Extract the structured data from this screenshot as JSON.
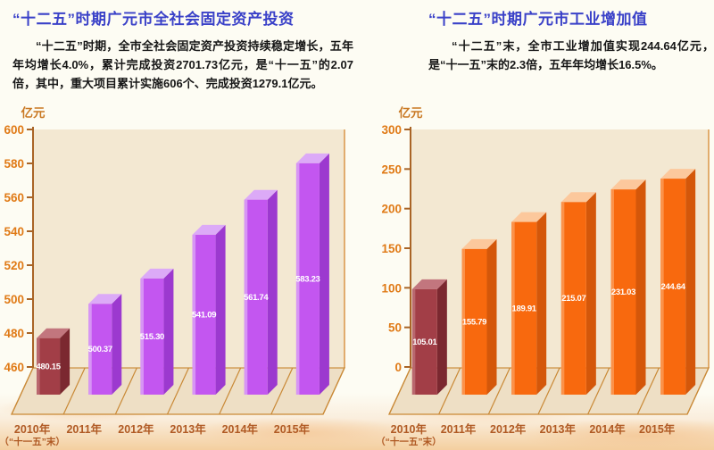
{
  "theme": {
    "title_color": "#3a41c8",
    "body_color": "#161616",
    "page_background": "#fdfcf3",
    "watercolor_band": "#f4cf9f"
  },
  "sections": {
    "left": {
      "title": "“十二五”时期广元市全社会固定资产投资",
      "paragraph": "“十二五”时期，全市全社会固定资产投资持续稳定增长，五年年均增长4.0%，累计完成投资2701.73亿元，是“十一五”的2.07倍，其中，重大项目累计实施606个、完成投资1279.1亿元。"
    },
    "right": {
      "title": "“十二五”时期广元市工业增加值",
      "paragraph": "“十二五”末，全市工业增加值实现244.64亿元，是“十一五”末的2.3倍，五年年均增长16.5%。"
    }
  },
  "chart_data": [
    {
      "type": "bar",
      "variant": "3d-column",
      "title": "“十二五”时期广元市全社会固定资产投资",
      "unit_label": "亿元",
      "categories": [
        "2010年",
        "2011年",
        "2012年",
        "2013年",
        "2014年",
        "2015年"
      ],
      "category_sublabels": [
        "（“十一五”末）",
        "",
        "",
        "",
        "",
        ""
      ],
      "values": [
        480.15,
        500.37,
        515.3,
        541.09,
        561.74,
        583.23
      ],
      "value_labels": [
        "480.15",
        "500.37",
        "515.30",
        "541.09",
        "561.74",
        "583.23"
      ],
      "ylim": [
        460,
        600
      ],
      "yticks": [
        460,
        480,
        500,
        520,
        540,
        560,
        580,
        600
      ],
      "grid": false,
      "legend": "none",
      "colors": {
        "first_bar": {
          "front": "#a23e47",
          "side": "#7b2830",
          "top": "#c2767e",
          "edge": "#bd6e76"
        },
        "bars": {
          "front": "#c356f0",
          "side": "#9c39cf",
          "top": "#dcaaf7",
          "edge": "#daa0f6"
        },
        "axis": "#a96426",
        "wall": "#f3e8d2",
        "wall_border": "#da9548",
        "floor": "#eedfc5",
        "floor_line": "#c98936",
        "tick_label": "#e07a16",
        "unit_label": "#c97822",
        "category_label": "#b05a24",
        "value_label": "#ffffff"
      }
    },
    {
      "type": "bar",
      "variant": "3d-column",
      "title": "“十二五”时期广元市工业增加值",
      "unit_label": "亿元",
      "categories": [
        "2010年",
        "2011年",
        "2012年",
        "2013年",
        "2014年",
        "2015年"
      ],
      "category_sublabels": [
        "（“十一五”末）",
        "",
        "",
        "",
        "",
        ""
      ],
      "values": [
        105.01,
        155.79,
        189.91,
        215.07,
        231.03,
        244.64
      ],
      "value_labels": [
        "105.01",
        "155.79",
        "189.91",
        "215.07",
        "231.03",
        "244.64"
      ],
      "ylim": [
        0,
        300
      ],
      "yticks": [
        0,
        50,
        100,
        150,
        200,
        250,
        300
      ],
      "grid": false,
      "legend": "none",
      "colors": {
        "first_bar": {
          "front": "#a23e47",
          "side": "#7b2830",
          "top": "#c2767e",
          "edge": "#bd6e76"
        },
        "bars": {
          "front": "#f8690e",
          "side": "#d4570a",
          "top": "#fcc89c",
          "edge": "#fb9a55"
        },
        "axis": "#a96426",
        "wall": "#f3e8d2",
        "wall_border": "#da9548",
        "floor": "#eedfc5",
        "floor_line": "#c98936",
        "tick_label": "#e07a16",
        "unit_label": "#c97822",
        "category_label": "#b05a24",
        "value_label": "#ffffff"
      }
    }
  ]
}
